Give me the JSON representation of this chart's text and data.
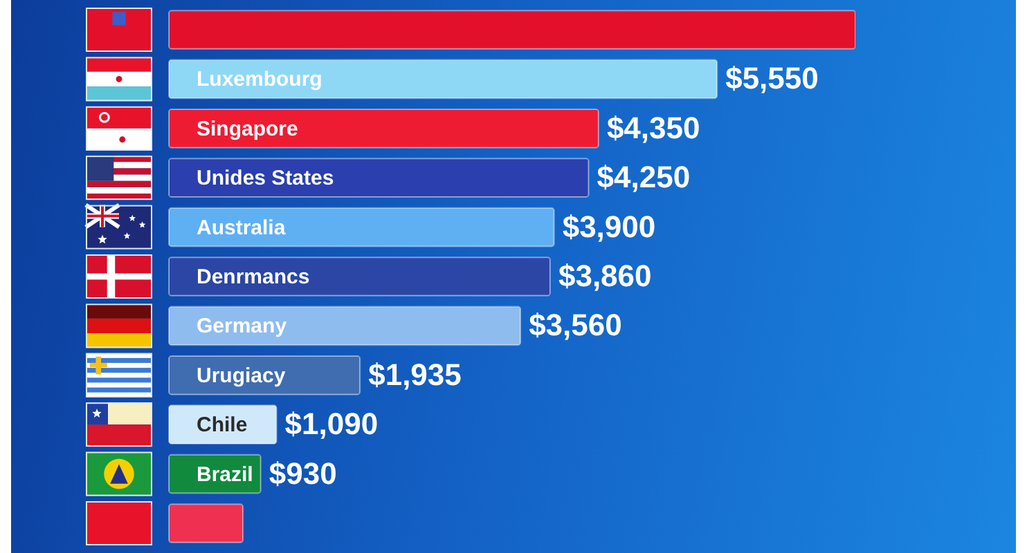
{
  "chart_data": {
    "type": "bar",
    "orientation": "horizontal",
    "categories": [
      null,
      "Luxembourg",
      "Singapore",
      "Unides States",
      "Australia",
      "Denrmancs",
      "Germany",
      "Urugiacy",
      "Chile",
      "Brazil",
      null
    ],
    "values": [
      6950,
      5550,
      4350,
      4250,
      3900,
      3860,
      3560,
      1935,
      1090,
      930,
      750
    ],
    "colors": [
      "#e3102c",
      "#8fd8f5",
      "#ee1c33",
      "#2b3fae",
      "#5fb0f2",
      "#2c46a6",
      "#8fbcee",
      "#3f6db0",
      "#cfe9fb",
      "#118a3e",
      "#f03050"
    ],
    "value_labels": [
      null,
      "$5,550",
      "$4,350",
      "$4,250",
      "$3,900",
      "$3,860",
      "$3,560",
      "$1,935",
      "$1,090",
      "$930",
      null
    ]
  }
}
